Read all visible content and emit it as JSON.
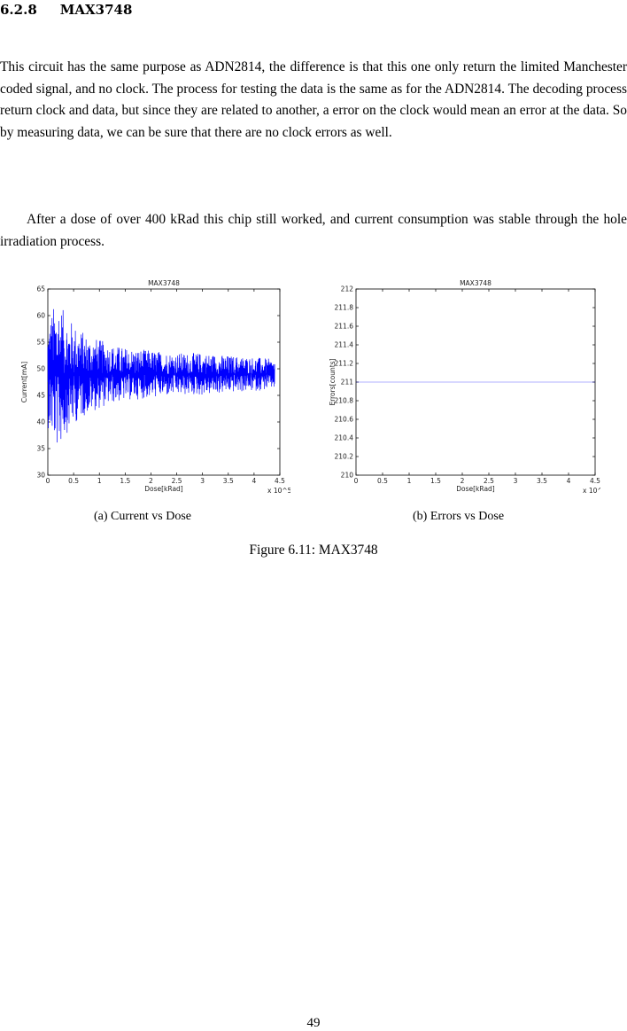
{
  "section": {
    "number": "6.2.8",
    "title": "MAX3748"
  },
  "paragraphs": [
    "This circuit has the same purpose as ADN2814, the difference is that this one only return the limited Manchester coded signal, and no clock. The process for testing the data is the same as for the ADN2814. The decoding process return clock and data, but since they are related to another, a error on the clock would mean an error at the data. So by measuring data, we can be sure that there are no clock errors as well.",
    "After a dose of over 400 kRad this chip still worked, and current consumption was stable through the hole irradiation process."
  ],
  "figure": {
    "caption": "Figure 6.11: MAX3748",
    "subcaptions": [
      "(a) Current vs Dose",
      "(b) Errors vs Dose"
    ]
  },
  "page_number": "49",
  "chart_data": [
    {
      "type": "line",
      "title": "MAX3748",
      "xlabel": "Dose[kRad]",
      "ylabel": "Current[mA]",
      "x_multiplier_label": "x 10^5",
      "xlim": [
        0,
        4.5
      ],
      "ylim": [
        30,
        65
      ],
      "xticks": [
        0,
        0.5,
        1,
        1.5,
        2,
        2.5,
        3,
        3.5,
        4,
        4.5
      ],
      "yticks": [
        30,
        35,
        40,
        45,
        50,
        55,
        60,
        65
      ],
      "grid": false,
      "series": [
        {
          "color": "#0000ff",
          "envelope": {
            "x": [
              0,
              0.1,
              0.2,
              0.3,
              0.5,
              0.75,
              1.0,
              1.25,
              1.5,
              2.0,
              2.5,
              3.0,
              3.5,
              4.0,
              4.4
            ],
            "upper": [
              60,
              61,
              63,
              61,
              59,
              57,
              56,
              55,
              54.5,
              54,
              53.5,
              53.5,
              53,
              52.5,
              52
            ],
            "lower": [
              40,
              36,
              34,
              37,
              40,
              42,
              43,
              44,
              44.5,
              45,
              45.5,
              45.5,
              46,
              46,
              46.5
            ],
            "center": 49
          }
        }
      ]
    },
    {
      "type": "line",
      "title": "MAX3748",
      "xlabel": "Dose[kRad]",
      "ylabel": "Errors[counts]",
      "x_multiplier_label": "x 10^5",
      "xlim": [
        0,
        4.5
      ],
      "ylim": [
        210,
        212
      ],
      "xticks": [
        0,
        0.5,
        1,
        1.5,
        2,
        2.5,
        3,
        3.5,
        4,
        4.5
      ],
      "ytick_labels": [
        "210",
        "210.2",
        "210.4",
        "210.6",
        "210.8",
        "211",
        "211.2",
        "211.4",
        "211.6",
        "211.8",
        "212"
      ],
      "grid": false,
      "series": [
        {
          "color": "#0000ff",
          "x": [
            0,
            4.5
          ],
          "y": [
            211,
            211
          ]
        }
      ]
    }
  ]
}
